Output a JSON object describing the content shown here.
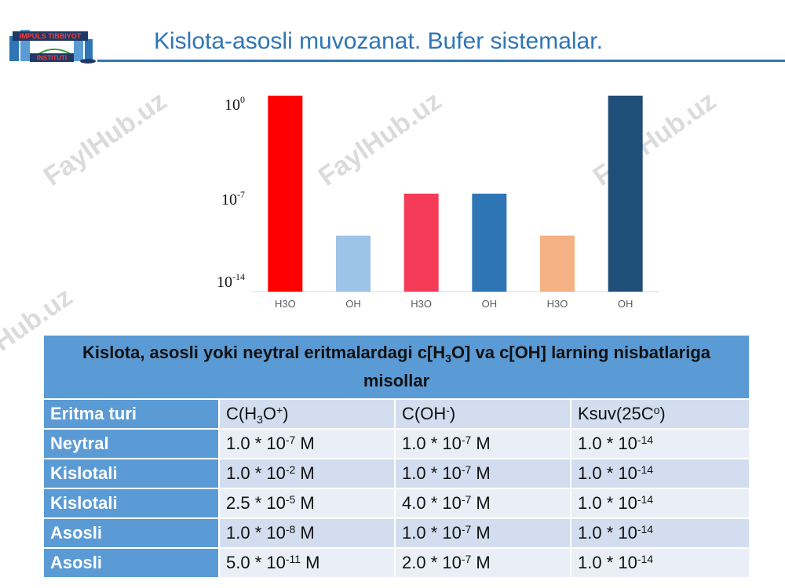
{
  "title": "Kislota-asosli muvozanat. Bufer sistemalar.",
  "logo": {
    "line1": "IMPULS TIBBIYOT",
    "line2": "INSTITUTI"
  },
  "watermark": "FaylHub.uz",
  "chart_data": {
    "type": "bar",
    "categories": [
      "H3O",
      "OH",
      "H3O",
      "OH",
      "H3O",
      "OH"
    ],
    "values": [
      0,
      -10,
      -7,
      -7,
      -10,
      0
    ],
    "colors": [
      "#ff0000",
      "#9dc3e6",
      "#f53b57",
      "#2e75b6",
      "#f4b183",
      "#1f4e79"
    ],
    "ylim": [
      -14,
      0
    ],
    "ytick_values": [
      0,
      -7,
      -14
    ],
    "ytick_labels": [
      {
        "base": "10",
        "exp": "0"
      },
      {
        "base": "10",
        "exp": "-7"
      },
      {
        "base": "10",
        "exp": "-14"
      }
    ],
    "grid": false,
    "legend": false
  },
  "table": {
    "header": {
      "part1": "Kislota, asosli yoki neytral eritmalardagi c[H",
      "sub": "3",
      "part2": "O] va c[OH] larning nisbatlariga misollar"
    },
    "columns": [
      {
        "text": "Eritma turi"
      },
      {
        "pre": "C(H",
        "sub": "3",
        "mid": "O",
        "sup": "+",
        "post": ")"
      },
      {
        "pre": "C(OH",
        "sup": "-",
        "post": ")"
      },
      {
        "pre": "Ksuv(25C",
        "sup": "o",
        "post": ")"
      }
    ],
    "rows": [
      {
        "label": "Neytral",
        "cells": [
          {
            "pre": "1.0 * 10",
            "exp": "-7",
            "post": " M"
          },
          {
            "pre": "1.0 * 10",
            "exp": "-7",
            "post": " M"
          },
          {
            "pre": "1.0 * 10",
            "exp": "-14",
            "post": ""
          }
        ]
      },
      {
        "label": "Kislotali",
        "cells": [
          {
            "pre": "1.0 * 10",
            "exp": "-2",
            "post": " M"
          },
          {
            "pre": "1.0 * 10",
            "exp": "-7",
            "post": " M"
          },
          {
            "pre": "1.0 * 10",
            "exp": "-14",
            "post": ""
          }
        ]
      },
      {
        "label": "Kislotali",
        "cells": [
          {
            "pre": "2.5 * 10",
            "exp": "-5",
            "post": " M"
          },
          {
            "pre": "4.0 * 10",
            "exp": "-7",
            "post": " M"
          },
          {
            "pre": "1.0 * 10",
            "exp": "-14",
            "post": ""
          }
        ]
      },
      {
        "label": "Asosli",
        "cells": [
          {
            "pre": "1.0 * 10",
            "exp": "-8",
            "post": " M"
          },
          {
            "pre": "1.0 * 10",
            "exp": "-7",
            "post": " M"
          },
          {
            "pre": "1.0 * 10",
            "exp": "-14",
            "post": ""
          }
        ]
      },
      {
        "label": "Asosli",
        "cells": [
          {
            "pre": "5.0 * 10",
            "exp": "-11",
            "post": " M"
          },
          {
            "pre": "2.0 * 10",
            "exp": "-7",
            "post": " M"
          },
          {
            "pre": "1.0 * 10",
            "exp": "-14",
            "post": ""
          }
        ]
      }
    ]
  }
}
